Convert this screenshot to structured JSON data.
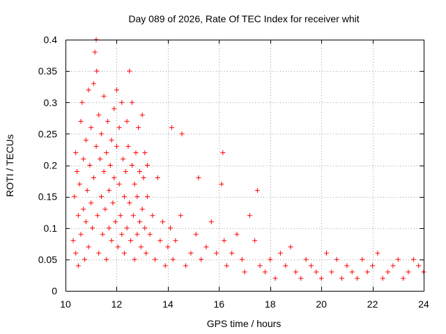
{
  "chart_data": {
    "type": "scatter",
    "title": "Day 089 of 2026, Rate Of TEC Index for receiver whit",
    "xlabel": "GPS time / hours",
    "ylabel": "ROTI / TECUs",
    "xlim": [
      10,
      24
    ],
    "ylim": [
      0,
      0.4
    ],
    "x_ticks": [
      10,
      12,
      14,
      16,
      18,
      20,
      22,
      24
    ],
    "y_ticks": [
      0,
      0.05,
      0.1,
      0.15,
      0.2,
      0.25,
      0.3,
      0.35,
      0.4
    ],
    "x_tick_labels": [
      "10",
      "12",
      "14",
      "16",
      "18",
      "20",
      "22",
      "24"
    ],
    "y_tick_labels": [
      "0",
      "0.05",
      "0.1",
      "0.15",
      "0.2",
      "0.25",
      "0.3",
      "0.35",
      "0.4"
    ],
    "grid": true,
    "marker": "plus",
    "color": "#ff0000",
    "series": [
      {
        "x": [
          10.3,
          10.35,
          10.4,
          10.4,
          10.45,
          10.5,
          10.5,
          10.55,
          10.6,
          10.6,
          10.65,
          10.7,
          10.7,
          10.75,
          10.8,
          10.8,
          10.85,
          10.9,
          10.9,
          10.95,
          11.0,
          11.0,
          11.05,
          11.1,
          11.1,
          11.15,
          11.2,
          11.2,
          11.22,
          11.25,
          11.3,
          11.3,
          11.35,
          11.4,
          11.4,
          11.45,
          11.5,
          11.5,
          11.55,
          11.6,
          11.6,
          11.65,
          11.7,
          11.7,
          11.75,
          11.8,
          11.8,
          11.85,
          11.9,
          11.9,
          11.95,
          12.0,
          12.0,
          12.05,
          12.1,
          12.1,
          12.15,
          12.2,
          12.2,
          12.25,
          12.3,
          12.3,
          12.35,
          12.4,
          12.4,
          12.45,
          12.5,
          12.5,
          12.55,
          12.6,
          12.6,
          12.65,
          12.7,
          12.7,
          12.75,
          12.8,
          12.8,
          12.85,
          12.9,
          12.9,
          12.95,
          13.0,
          13.0,
          13.05,
          13.1,
          13.1,
          13.15,
          13.2,
          13.2,
          13.3,
          13.4,
          13.5,
          13.6,
          13.7,
          13.8,
          13.9,
          14.0,
          14.1,
          14.15,
          14.2,
          14.3,
          14.5,
          14.55,
          14.7,
          14.9,
          15.1,
          15.2,
          15.3,
          15.5,
          15.7,
          15.9,
          16.1,
          16.15,
          16.2,
          16.3,
          16.5,
          16.7,
          16.9,
          17.0,
          17.2,
          17.4,
          17.5,
          17.6,
          17.8,
          18.0,
          18.2,
          18.4,
          18.6,
          18.8,
          19.0,
          19.2,
          19.4,
          19.6,
          19.8,
          20.0,
          20.2,
          20.4,
          20.6,
          20.8,
          21.0,
          21.2,
          21.4,
          21.6,
          21.8,
          22.0,
          22.2,
          22.4,
          22.6,
          22.8,
          23.0,
          23.2,
          23.4,
          23.6,
          23.8,
          24.0
        ],
        "y": [
          0.08,
          0.15,
          0.22,
          0.06,
          0.19,
          0.12,
          0.04,
          0.17,
          0.27,
          0.09,
          0.3,
          0.13,
          0.21,
          0.05,
          0.24,
          0.11,
          0.16,
          0.32,
          0.07,
          0.2,
          0.14,
          0.26,
          0.1,
          0.33,
          0.18,
          0.38,
          0.4,
          0.23,
          0.35,
          0.12,
          0.28,
          0.06,
          0.21,
          0.15,
          0.25,
          0.09,
          0.19,
          0.31,
          0.13,
          0.22,
          0.05,
          0.27,
          0.16,
          0.1,
          0.2,
          0.24,
          0.08,
          0.14,
          0.29,
          0.18,
          0.11,
          0.23,
          0.32,
          0.07,
          0.17,
          0.26,
          0.12,
          0.3,
          0.09,
          0.21,
          0.15,
          0.06,
          0.19,
          0.27,
          0.1,
          0.23,
          0.35,
          0.14,
          0.08,
          0.2,
          0.3,
          0.12,
          0.17,
          0.05,
          0.22,
          0.09,
          0.15,
          0.26,
          0.11,
          0.19,
          0.07,
          0.28,
          0.13,
          0.18,
          0.1,
          0.22,
          0.06,
          0.15,
          0.2,
          0.09,
          0.12,
          0.05,
          0.18,
          0.08,
          0.11,
          0.04,
          0.07,
          0.1,
          0.26,
          0.05,
          0.08,
          0.12,
          0.25,
          0.04,
          0.06,
          0.09,
          0.18,
          0.05,
          0.07,
          0.11,
          0.06,
          0.17,
          0.22,
          0.08,
          0.04,
          0.06,
          0.09,
          0.05,
          0.03,
          0.12,
          0.08,
          0.16,
          0.04,
          0.03,
          0.05,
          0.02,
          0.06,
          0.04,
          0.07,
          0.03,
          0.02,
          0.05,
          0.04,
          0.03,
          0.02,
          0.06,
          0.03,
          0.05,
          0.02,
          0.04,
          0.03,
          0.02,
          0.05,
          0.03,
          0.04,
          0.06,
          0.02,
          0.03,
          0.04,
          0.05,
          0.02,
          0.03,
          0.05,
          0.04,
          0.03
        ]
      }
    ]
  }
}
